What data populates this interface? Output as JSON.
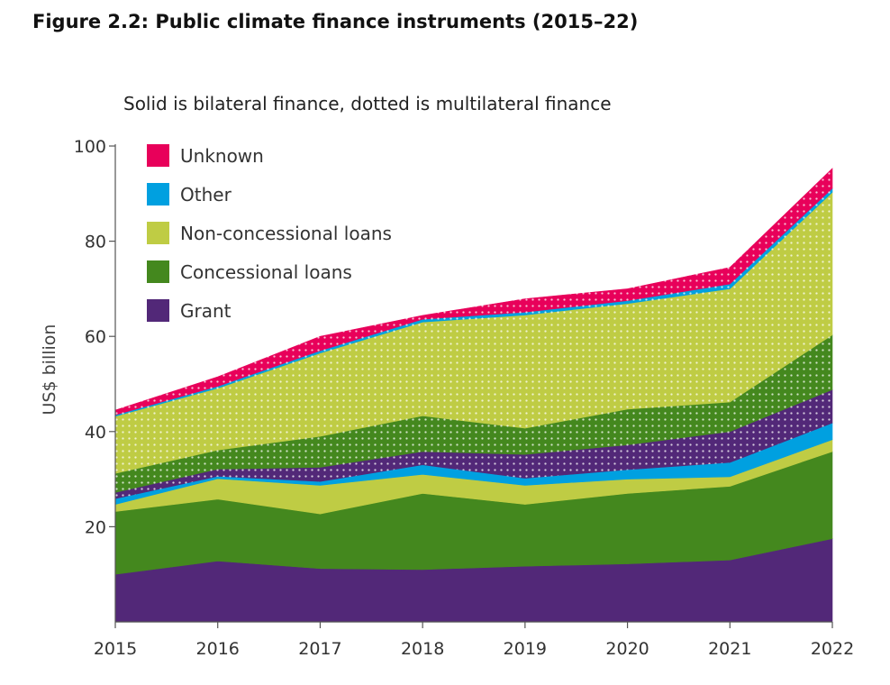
{
  "figure_title": "Figure 2.2: Public climate finance instruments (2015–22)",
  "chart_data": {
    "type": "area",
    "subtitle": "Solid is bilateral finance, dotted is multilateral finance",
    "ylabel": "US$ billion",
    "xlabel": "",
    "x": [
      "2015",
      "2016",
      "2017",
      "2018",
      "2019",
      "2020",
      "2021",
      "2022"
    ],
    "ylim": [
      0,
      100
    ],
    "yticks": [
      "20",
      "40",
      "60",
      "80",
      "100"
    ],
    "stacked": true,
    "grid": false,
    "legend_position": "top-left",
    "legend": [
      {
        "label": "Unknown",
        "color": "#e8005a"
      },
      {
        "label": "Other",
        "color": "#00a0e0"
      },
      {
        "label": "Non-concessional loans",
        "color": "#bfcc44"
      },
      {
        "label": "Concessional loans",
        "color": "#44881e"
      },
      {
        "label": "Grant",
        "color": "#522878"
      }
    ],
    "series": [
      {
        "name": "Grant",
        "finance": "bilateral",
        "color": "#522878",
        "pattern": "solid",
        "values": [
          10,
          12.8,
          11.2,
          11,
          11.7,
          12.2,
          13,
          17.5
        ]
      },
      {
        "name": "Concessional loans",
        "finance": "bilateral",
        "color": "#44881e",
        "pattern": "solid",
        "values": [
          13.2,
          13,
          11.5,
          16,
          13,
          14.8,
          15.5,
          18.3
        ]
      },
      {
        "name": "Non-concessional loans",
        "finance": "bilateral",
        "color": "#bfcc44",
        "pattern": "solid",
        "values": [
          1.5,
          4.3,
          6,
          4,
          4,
          3,
          2,
          2.5
        ]
      },
      {
        "name": "Other",
        "finance": "bilateral",
        "color": "#00a0e0",
        "pattern": "solid",
        "values": [
          1.2,
          0.5,
          0.8,
          2,
          1.5,
          2,
          3,
          3.5
        ]
      },
      {
        "name": "Grant",
        "finance": "multilateral",
        "color": "#522878",
        "pattern": "dotted",
        "values": [
          1.3,
          1.5,
          3,
          2.8,
          5,
          5.2,
          6.5,
          7
        ]
      },
      {
        "name": "Concessional loans",
        "finance": "multilateral",
        "color": "#44881e",
        "pattern": "dotted",
        "values": [
          4,
          4,
          6.5,
          7.5,
          5.5,
          7.5,
          6.2,
          11.5
        ]
      },
      {
        "name": "Non-concessional loans",
        "finance": "multilateral",
        "color": "#bfcc44",
        "pattern": "dotted",
        "values": [
          12,
          13,
          17.5,
          19.7,
          23.8,
          22.2,
          23.8,
          30
        ]
      },
      {
        "name": "Other",
        "finance": "multilateral",
        "color": "#00a0e0",
        "pattern": "dotted",
        "values": [
          0.3,
          0.4,
          0.5,
          0.6,
          0.6,
          0.6,
          1.0,
          0.8
        ]
      },
      {
        "name": "Unknown",
        "finance": "multilateral",
        "color": "#e8005a",
        "pattern": "dotted",
        "values": [
          1.0,
          2.0,
          3.0,
          0.8,
          2.8,
          2.5,
          3.5,
          4.2
        ]
      }
    ]
  }
}
